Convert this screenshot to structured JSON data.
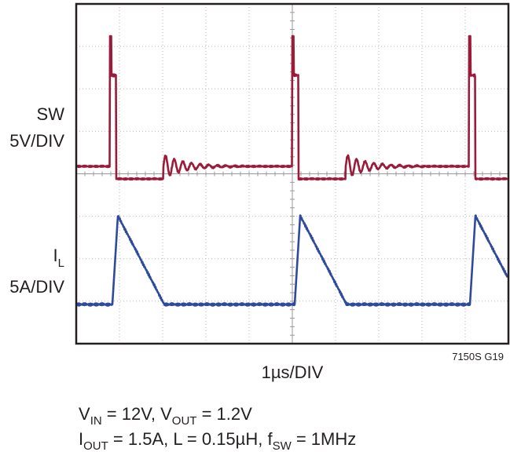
{
  "chart_data": {
    "type": "scope",
    "traces": [
      {
        "label": "SW",
        "scale": "5V/DIV",
        "color": "#9b1b3a"
      },
      {
        "label": "I",
        "label_sub": "L",
        "scale": "5A/DIV",
        "color": "#2e4a9a"
      }
    ],
    "x_scale": "1µs/DIV",
    "figure_id": "7150S G19",
    "conditions": [
      [
        {
          "t": "V"
        },
        {
          "sub": "IN"
        },
        {
          "t": " = 12V, V"
        },
        {
          "sub": "OUT"
        },
        {
          "t": " = 1.2V"
        }
      ],
      [
        {
          "t": "I"
        },
        {
          "sub": "OUT"
        },
        {
          "t": " = 1.5A, L = 0.15µH, f"
        },
        {
          "sub": "SW"
        },
        {
          "t": " = 1MHz"
        }
      ]
    ]
  }
}
